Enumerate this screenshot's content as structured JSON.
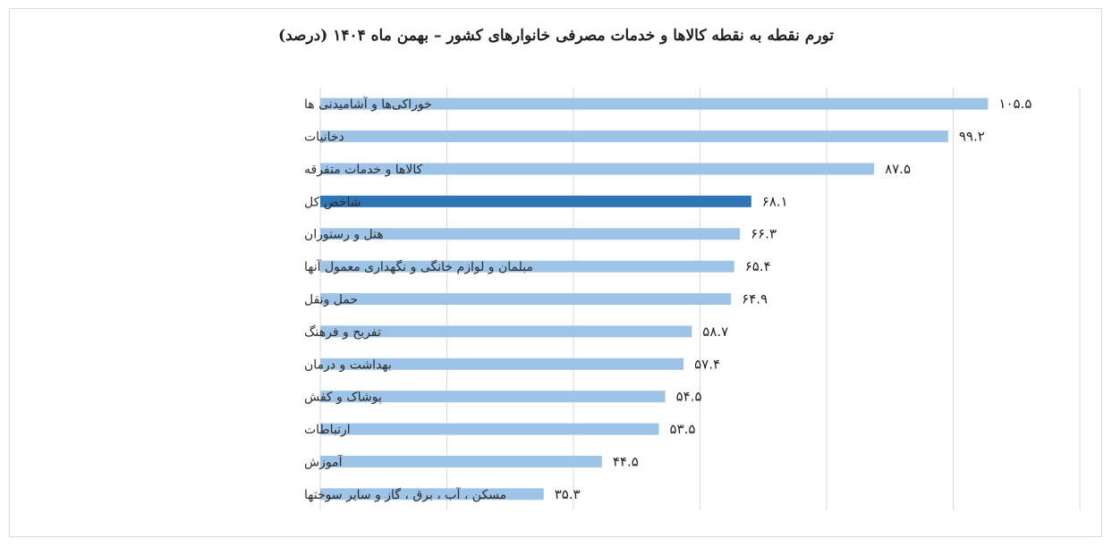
{
  "chart_data": {
    "type": "bar",
    "orientation": "horizontal",
    "title": "تورم نقطه به نقطه کالاها و خدمات مصرفی خانوارهای کشور – بهمن ماه ۱۴۰۴ (درصد)",
    "categories": [
      "خوراکی‌ها و آشامیدنی ها",
      "دخانیات",
      "کالاها و خدمات متفرقه",
      "شاخص کل",
      "هتل و رستوران",
      "مبلمان و لوازم خانگی و نگهداری معمول آنها",
      "حمل ونقل",
      "تفریح و فرهنگ",
      "بهداشت و درمان",
      "پوشاک و کفش",
      "ارتباطات",
      "آموزش",
      "مسکن ، آب ، برق ، گاز و سایر سوختها"
    ],
    "values": [
      105.5,
      99.2,
      87.5,
      68.1,
      66.3,
      65.4,
      64.9,
      58.7,
      57.4,
      54.5,
      53.5,
      44.5,
      35.3
    ],
    "value_labels": [
      "۱۰۵.۵",
      "۹۹.۲",
      "۸۷.۵",
      "۶۸.۱",
      "۶۶.۳",
      "۶۵.۴",
      "۶۴.۹",
      "۵۸.۷",
      "۵۷.۴",
      "۵۴.۵",
      "۵۳.۵",
      "۴۴.۵",
      "۳۵.۳"
    ],
    "highlight_category": "شاخص کل",
    "xlim": [
      0,
      120
    ],
    "grid": true,
    "legend": "none",
    "colors": {
      "bar": "#9dc3e6",
      "highlight": "#2e75b6",
      "grid": "#d9d9d9"
    }
  }
}
